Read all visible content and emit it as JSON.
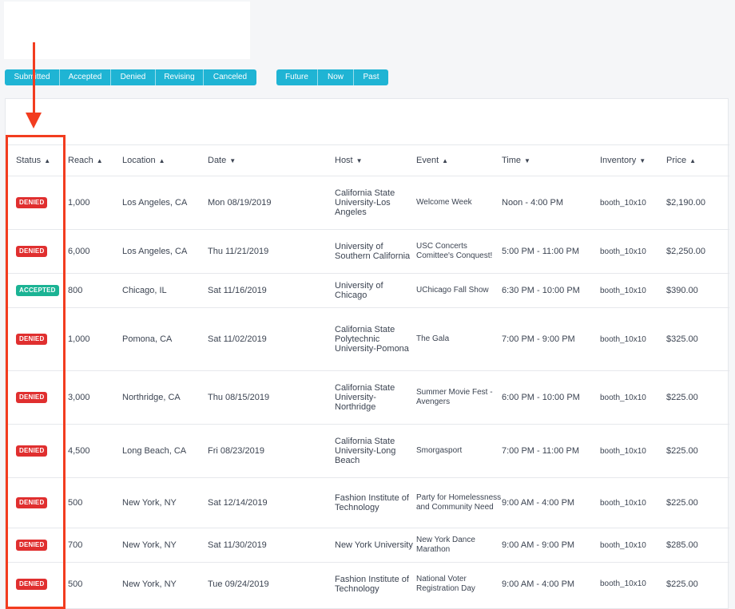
{
  "status_filters": [
    "Submitted",
    "Accepted",
    "Denied",
    "Revising",
    "Canceled"
  ],
  "time_filters": [
    "Future",
    "Now",
    "Past"
  ],
  "columns": [
    {
      "label": "Status",
      "sort": "▲"
    },
    {
      "label": "Reach",
      "sort": "▲"
    },
    {
      "label": "Location",
      "sort": "▲"
    },
    {
      "label": "Date",
      "sort": "▼"
    },
    {
      "label": "Host",
      "sort": "▼"
    },
    {
      "label": "Event",
      "sort": "▲"
    },
    {
      "label": "Time",
      "sort": "▼"
    },
    {
      "label": "Inventory",
      "sort": "▼"
    },
    {
      "label": "Price",
      "sort": "▲"
    }
  ],
  "rows": [
    {
      "status": "DENIED",
      "reach": "1,000",
      "location": "Los Angeles, CA",
      "date": "Mon 08/19/2019",
      "host": "California State University-Los Angeles",
      "event": "Welcome Week",
      "time": "Noon - 4:00 PM",
      "inventory": "booth_10x10",
      "price": "$2,190.00"
    },
    {
      "status": "DENIED",
      "reach": "6,000",
      "location": "Los Angeles, CA",
      "date": "Thu 11/21/2019",
      "host": "University of Southern California",
      "event": "USC Concerts Comittee's Conquest!",
      "time": "5:00 PM - 11:00 PM",
      "inventory": "booth_10x10",
      "price": "$2,250.00"
    },
    {
      "status": "ACCEPTED",
      "reach": "800",
      "location": "Chicago, IL",
      "date": "Sat 11/16/2019",
      "host": "University of Chicago",
      "event": "UChicago Fall Show",
      "time": "6:30 PM - 10:00 PM",
      "inventory": "booth_10x10",
      "price": "$390.00"
    },
    {
      "status": "DENIED",
      "reach": "1,000",
      "location": "Pomona, CA",
      "date": "Sat 11/02/2019",
      "host": "California State Polytechnic University-Pomona",
      "event": "The Gala",
      "time": "7:00 PM - 9:00 PM",
      "inventory": "booth_10x10",
      "price": "$325.00"
    },
    {
      "status": "DENIED",
      "reach": "3,000",
      "location": "Northridge, CA",
      "date": "Thu 08/15/2019",
      "host": "California State University-Northridge",
      "event": "Summer Movie Fest - Avengers",
      "time": "6:00 PM - 10:00 PM",
      "inventory": "booth_10x10",
      "price": "$225.00"
    },
    {
      "status": "DENIED",
      "reach": "4,500",
      "location": "Long Beach, CA",
      "date": "Fri 08/23/2019",
      "host": "California State University-Long Beach",
      "event": "Smorgasport",
      "time": "7:00 PM - 11:00 PM",
      "inventory": "booth_10x10",
      "price": "$225.00"
    },
    {
      "status": "DENIED",
      "reach": "500",
      "location": "New York, NY",
      "date": "Sat 12/14/2019",
      "host": "Fashion Institute of Technology",
      "event": "Party for Homelessness and Community Need",
      "time": "9:00 AM - 4:00 PM",
      "inventory": "booth_10x10",
      "price": "$225.00"
    },
    {
      "status": "DENIED",
      "reach": "700",
      "location": "New York, NY",
      "date": "Sat 11/30/2019",
      "host": "New York University",
      "event": "New York Dance Marathon",
      "time": "9:00 AM - 9:00 PM",
      "inventory": "booth_10x10",
      "price": "$285.00"
    },
    {
      "status": "DENIED",
      "reach": "500",
      "location": "New York, NY",
      "date": "Tue 09/24/2019",
      "host": "Fashion Institute of Technology",
      "event": "National Voter Registration Day",
      "time": "9:00 AM - 4:00 PM",
      "inventory": "booth_10x10",
      "price": "$225.00"
    }
  ],
  "colors": {
    "accent": "#1fb4d4",
    "denied": "#e02f2f",
    "accepted": "#1bb394",
    "highlight": "#f23c1f"
  }
}
